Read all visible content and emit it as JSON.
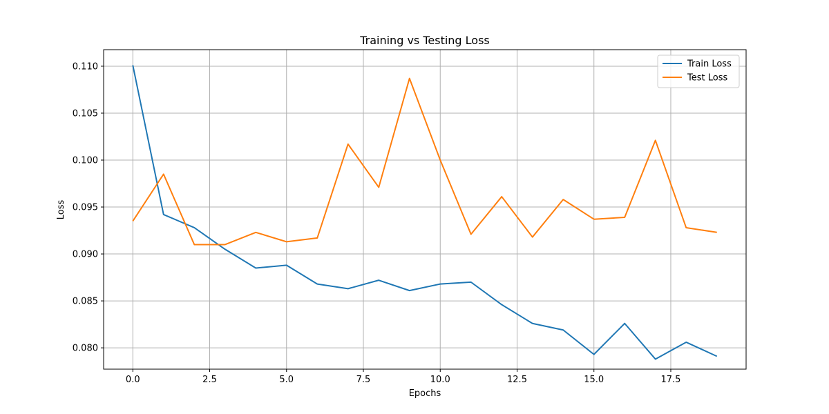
{
  "chart_data": {
    "type": "line",
    "title": "Training vs Testing Loss",
    "xlabel": "Epochs",
    "ylabel": "Loss",
    "x": [
      0,
      1,
      2,
      3,
      4,
      5,
      6,
      7,
      8,
      9,
      10,
      11,
      12,
      13,
      14,
      15,
      16,
      17,
      18,
      19
    ],
    "series": [
      {
        "name": "Train Loss",
        "color": "#1f77b4",
        "values": [
          0.1101,
          0.0942,
          0.0928,
          0.0905,
          0.0885,
          0.0888,
          0.0868,
          0.0863,
          0.0872,
          0.0861,
          0.0868,
          0.087,
          0.0846,
          0.0826,
          0.0819,
          0.0793,
          0.0826,
          0.0788,
          0.0806,
          0.0791
        ]
      },
      {
        "name": "Test Loss",
        "color": "#ff7f0e",
        "values": [
          0.0935,
          0.0985,
          0.091,
          0.091,
          0.0923,
          0.0913,
          0.0917,
          0.1017,
          0.0971,
          0.1087,
          0.1,
          0.0921,
          0.0961,
          0.0918,
          0.0958,
          0.0937,
          0.0939,
          0.1021,
          0.0928,
          0.0923
        ]
      }
    ],
    "xlim": [
      -0.95,
      19.95
    ],
    "ylim": [
      0.07773,
      0.11176
    ],
    "xticks": [
      0.0,
      2.5,
      5.0,
      7.5,
      10.0,
      12.5,
      15.0,
      17.5
    ],
    "xtick_labels": [
      "0.0",
      "2.5",
      "5.0",
      "7.5",
      "10.0",
      "12.5",
      "15.0",
      "17.5"
    ],
    "yticks": [
      0.08,
      0.085,
      0.09,
      0.095,
      0.1,
      0.105,
      0.11
    ],
    "ytick_labels": [
      "0.080",
      "0.085",
      "0.090",
      "0.095",
      "0.100",
      "0.105",
      "0.110"
    ],
    "grid": true,
    "grid_color": "#b0b0b0",
    "legend_position": "top-right"
  }
}
